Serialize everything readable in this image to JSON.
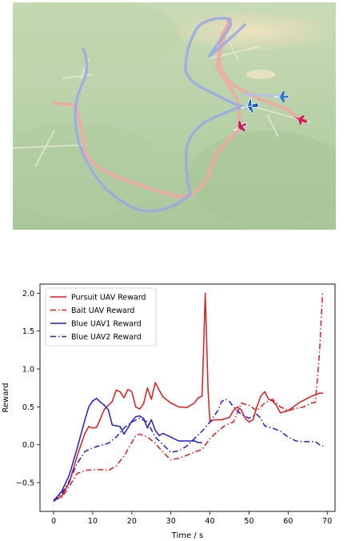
{
  "scene": {
    "description_icons": [
      "pursuit-uav-icon",
      "bait-uav-icon",
      "blue-uav1-icon",
      "blue-uav2-icon"
    ],
    "colors": {
      "terrain": "#a9c79a",
      "terrain_light": "#c3d8b1",
      "sand": "#e6dcb5",
      "red_trail": "#f0a9a4",
      "blue_trail": "#9aa8e6",
      "blue_uav": "#1f5fbf",
      "red_uav": "#c2185b"
    }
  },
  "chart_data": {
    "type": "line",
    "xlabel": "Time / s",
    "ylabel": "Reward",
    "xlim": [
      -3.5,
      72
    ],
    "ylim": [
      -0.88,
      2.12
    ],
    "xticks": [
      0,
      10,
      20,
      30,
      40,
      50,
      60,
      70
    ],
    "yticks": [
      -0.5,
      0.0,
      0.5,
      1.0,
      1.5,
      2.0
    ],
    "legend_position": "top-left",
    "series": [
      {
        "name": "Pursuit UAV Reward",
        "color": "#e31a1c",
        "style": "solid",
        "points": [
          [
            0,
            -0.73
          ],
          [
            2,
            -0.68
          ],
          [
            4,
            -0.5
          ],
          [
            6,
            -0.15
          ],
          [
            8,
            0.15
          ],
          [
            9,
            0.24
          ],
          [
            10,
            0.22
          ],
          [
            11,
            0.23
          ],
          [
            12,
            0.35
          ],
          [
            13,
            0.47
          ],
          [
            14,
            0.52
          ],
          [
            15,
            0.57
          ],
          [
            16,
            0.72
          ],
          [
            17,
            0.7
          ],
          [
            18,
            0.62
          ],
          [
            19,
            0.73
          ],
          [
            20,
            0.7
          ],
          [
            21,
            0.5
          ],
          [
            22,
            0.47
          ],
          [
            23,
            0.54
          ],
          [
            24,
            0.75
          ],
          [
            25,
            0.6
          ],
          [
            26,
            0.82
          ],
          [
            27,
            0.72
          ],
          [
            28,
            0.63
          ],
          [
            30,
            0.55
          ],
          [
            32,
            0.5
          ],
          [
            34,
            0.49
          ],
          [
            36,
            0.55
          ],
          [
            37,
            0.62
          ],
          [
            38,
            0.64
          ],
          [
            38.8,
            2.0
          ],
          [
            39.5,
            0.72
          ],
          [
            40,
            0.3
          ],
          [
            41,
            0.33
          ],
          [
            43,
            0.33
          ],
          [
            45,
            0.36
          ],
          [
            46,
            0.45
          ],
          [
            47,
            0.5
          ],
          [
            48,
            0.46
          ],
          [
            49,
            0.35
          ],
          [
            50,
            0.3
          ],
          [
            51,
            0.33
          ],
          [
            52,
            0.5
          ],
          [
            53,
            0.64
          ],
          [
            54,
            0.7
          ],
          [
            55,
            0.6
          ],
          [
            56,
            0.58
          ],
          [
            57,
            0.52
          ],
          [
            58,
            0.42
          ],
          [
            60,
            0.45
          ],
          [
            63,
            0.56
          ],
          [
            66,
            0.64
          ],
          [
            68,
            0.68
          ],
          [
            69,
            0.68
          ]
        ]
      },
      {
        "name": "Bait UAV Reward",
        "color": "#e31a1c",
        "style": "dashdot",
        "points": [
          [
            0,
            -0.73
          ],
          [
            2,
            -0.7
          ],
          [
            4,
            -0.55
          ],
          [
            6,
            -0.38
          ],
          [
            8,
            -0.34
          ],
          [
            10,
            -0.33
          ],
          [
            12,
            -0.33
          ],
          [
            14,
            -0.34
          ],
          [
            16,
            -0.28
          ],
          [
            18,
            -0.15
          ],
          [
            20,
            0.03
          ],
          [
            21,
            0.12
          ],
          [
            22,
            0.14
          ],
          [
            24,
            0.1
          ],
          [
            26,
            0.02
          ],
          [
            28,
            -0.1
          ],
          [
            30,
            -0.2
          ],
          [
            32,
            -0.18
          ],
          [
            34,
            -0.14
          ],
          [
            36,
            -0.1
          ],
          [
            38,
            -0.06
          ],
          [
            40,
            0.08
          ],
          [
            42,
            0.18
          ],
          [
            44,
            0.26
          ],
          [
            46,
            0.3
          ],
          [
            47,
            0.42
          ],
          [
            48,
            0.55
          ],
          [
            50,
            0.52
          ],
          [
            52,
            0.45
          ],
          [
            54,
            0.55
          ],
          [
            56,
            0.6
          ],
          [
            58,
            0.5
          ],
          [
            60,
            0.45
          ],
          [
            62,
            0.48
          ],
          [
            64,
            0.5
          ],
          [
            66,
            0.55
          ],
          [
            67,
            0.56
          ],
          [
            68,
            1.2
          ],
          [
            68.8,
            2.0
          ]
        ]
      },
      {
        "name": "Blue UAV1 Reward",
        "color": "#1f1fd1",
        "style": "solid",
        "points": [
          [
            0,
            -0.74
          ],
          [
            2,
            -0.62
          ],
          [
            4,
            -0.4
          ],
          [
            6,
            -0.05
          ],
          [
            8,
            0.33
          ],
          [
            9,
            0.5
          ],
          [
            10,
            0.58
          ],
          [
            11,
            0.61
          ],
          [
            12,
            0.56
          ],
          [
            13,
            0.52
          ],
          [
            14,
            0.46
          ],
          [
            15,
            0.26
          ],
          [
            16,
            0.25
          ],
          [
            17,
            0.24
          ],
          [
            18,
            0.14
          ],
          [
            19,
            0.22
          ],
          [
            20,
            0.31
          ],
          [
            21,
            0.37
          ],
          [
            22,
            0.38
          ],
          [
            23,
            0.35
          ],
          [
            24,
            0.22
          ],
          [
            25,
            0.33
          ],
          [
            26,
            0.19
          ],
          [
            27,
            0.12
          ],
          [
            28,
            0.15
          ],
          [
            30,
            0.1
          ],
          [
            32,
            0.05
          ],
          [
            34,
            0.05
          ],
          [
            36,
            0.05
          ],
          [
            37,
            0.03
          ],
          [
            38,
            0.03
          ]
        ]
      },
      {
        "name": "Blue UAV2 Reward",
        "color": "#1f1fd1",
        "style": "dashdot",
        "points": [
          [
            0,
            -0.75
          ],
          [
            2,
            -0.65
          ],
          [
            4,
            -0.48
          ],
          [
            6,
            -0.25
          ],
          [
            8,
            -0.09
          ],
          [
            10,
            -0.04
          ],
          [
            12,
            -0.01
          ],
          [
            14,
            0.02
          ],
          [
            16,
            0.1
          ],
          [
            18,
            0.22
          ],
          [
            20,
            0.3
          ],
          [
            22,
            0.35
          ],
          [
            24,
            0.3
          ],
          [
            26,
            0.1
          ],
          [
            28,
            0.0
          ],
          [
            30,
            -0.1
          ],
          [
            32,
            -0.08
          ],
          [
            34,
            -0.02
          ],
          [
            36,
            0.08
          ],
          [
            38,
            0.18
          ],
          [
            40,
            0.3
          ],
          [
            42,
            0.45
          ],
          [
            43,
            0.57
          ],
          [
            44,
            0.6
          ],
          [
            45,
            0.57
          ],
          [
            46,
            0.5
          ],
          [
            48,
            0.4
          ],
          [
            50,
            0.35
          ],
          [
            52,
            0.4
          ],
          [
            53,
            0.35
          ],
          [
            54,
            0.25
          ],
          [
            56,
            0.22
          ],
          [
            58,
            0.18
          ],
          [
            60,
            0.1
          ],
          [
            62,
            0.05
          ],
          [
            64,
            0.04
          ],
          [
            66,
            0.04
          ],
          [
            67,
            0.04
          ],
          [
            68,
            0.0
          ],
          [
            69,
            -0.02
          ]
        ]
      }
    ]
  }
}
